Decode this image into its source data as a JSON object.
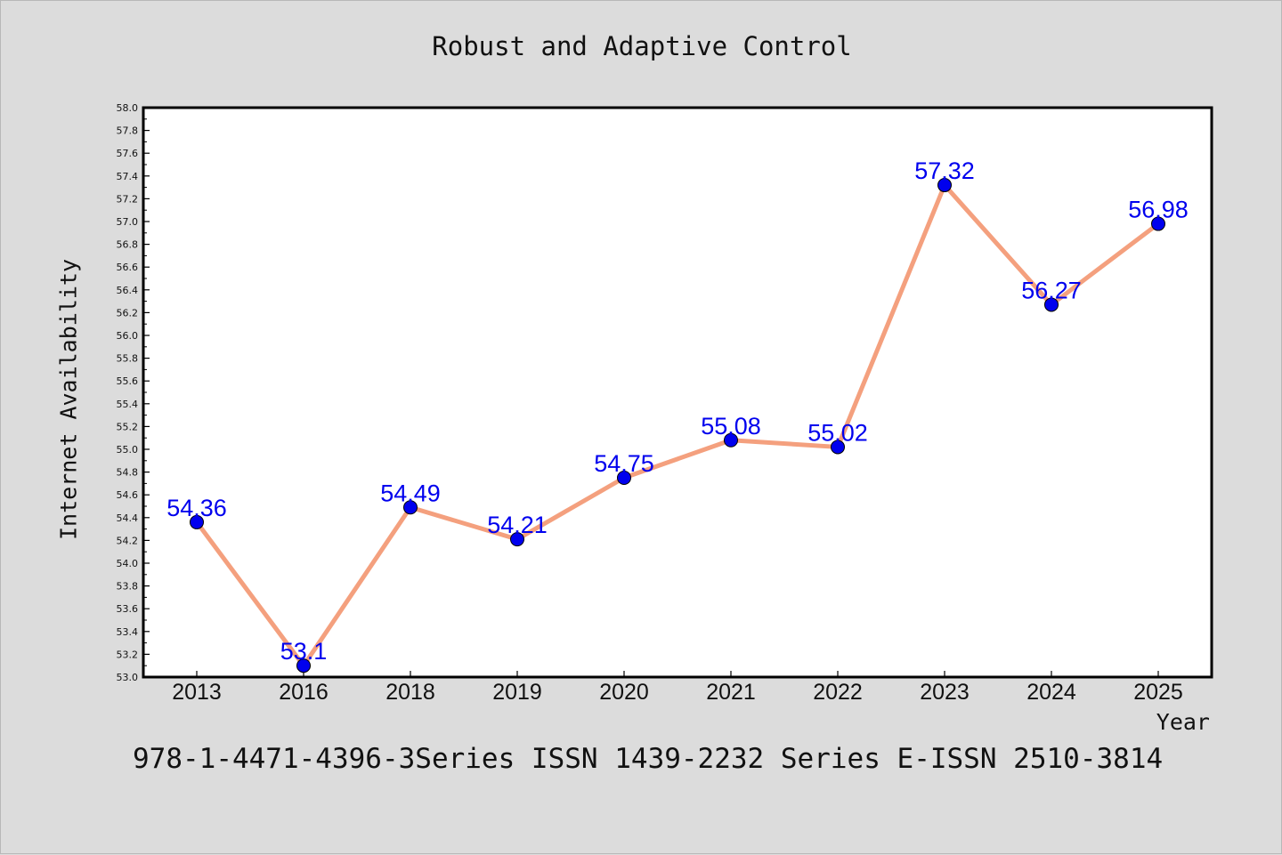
{
  "chart_data": {
    "type": "line",
    "title": "Robust and Adaptive Control",
    "xlabel": "Year",
    "ylabel": "Internet Availability",
    "categories": [
      "2013",
      "2016",
      "2018",
      "2019",
      "2020",
      "2021",
      "2022",
      "2023",
      "2024",
      "2025"
    ],
    "series": [
      {
        "values": [
          54.36,
          53.1,
          54.49,
          54.21,
          54.75,
          55.08,
          55.02,
          57.32,
          56.27,
          56.98
        ],
        "data_labels": [
          "54.36",
          "53.1",
          "54.49",
          "54.21",
          "54.75",
          "55.08",
          "55.02",
          "57.32",
          "56.27",
          "56.98"
        ],
        "line_color": "#f4a07e",
        "marker_color": "#0000ee"
      }
    ],
    "ylim": [
      53.0,
      58.0
    ],
    "y_ticks": [
      "53.0",
      "53.2",
      "53.4",
      "53.6",
      "53.8",
      "54.0",
      "54.2",
      "54.4",
      "54.6",
      "54.8",
      "55.0",
      "55.2",
      "55.4",
      "55.6",
      "55.8",
      "56.0",
      "56.2",
      "56.4",
      "56.6",
      "56.8",
      "57.0",
      "57.2",
      "57.4",
      "57.6",
      "57.8",
      "58.0"
    ],
    "grid": false,
    "legend": "none"
  },
  "footer": {
    "text": "978-1-4471-4396-3Series ISSN 1439-2232 Series E-ISSN 2510-3814"
  },
  "colors": {
    "background": "#dcdcdc",
    "plot_background": "#ffffff",
    "line": "#f4a07e",
    "marker": "#0000ee",
    "data_label": "#0000ee"
  }
}
